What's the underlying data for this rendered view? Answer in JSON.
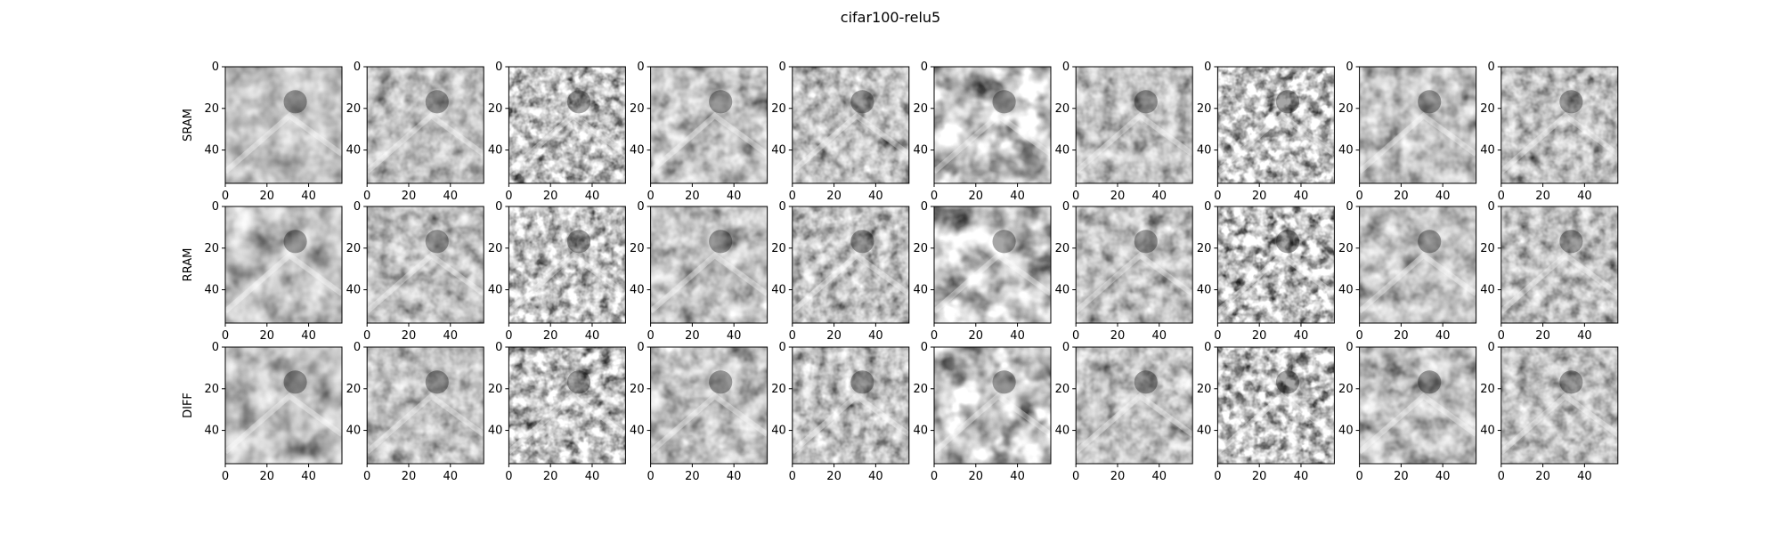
{
  "chart_data": {
    "type": "heatmap",
    "title": "cifar100-relu5",
    "colormap": "gray",
    "rows": [
      {
        "label": "SRAM"
      },
      {
        "label": "RRAM"
      },
      {
        "label": "DIFF"
      }
    ],
    "columns": 10,
    "image_size": [
      56,
      56
    ],
    "xticks": [
      "0",
      "20",
      "40"
    ],
    "yticks": [
      "0",
      "20",
      "40"
    ],
    "xlim": [
      0,
      56
    ],
    "ylim": [
      56,
      0
    ]
  }
}
